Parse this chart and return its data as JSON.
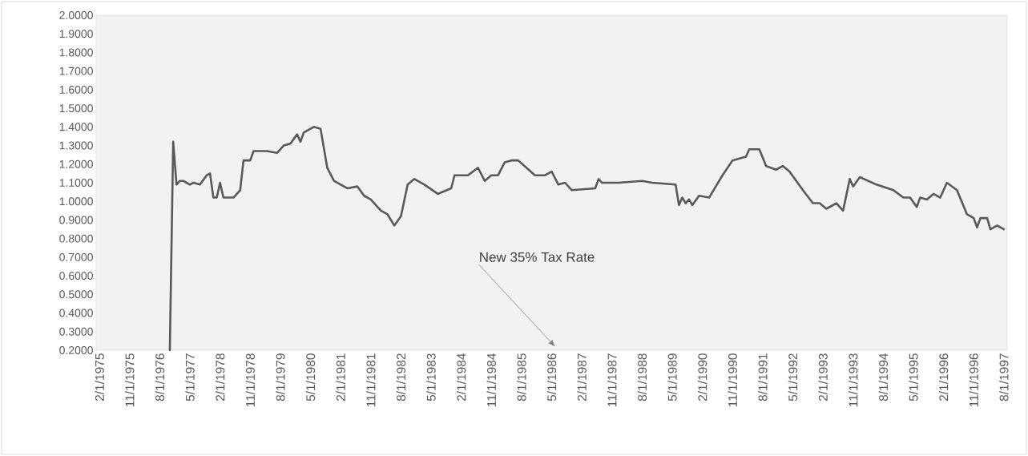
{
  "chart_data": {
    "type": "line",
    "x": [
      "1976-11",
      "1976-12",
      "1977-01",
      "1977-02",
      "1977-03",
      "1977-04",
      "1977-05",
      "1977-06",
      "1977-08",
      "1977-10",
      "1977-11",
      "1977-12",
      "1978-01",
      "1978-02",
      "1978-03",
      "1978-06",
      "1978-07",
      "1978-08",
      "1978-09",
      "1978-11",
      "1978-12",
      "1979-04",
      "1979-07",
      "1979-09",
      "1979-11",
      "1980-01",
      "1980-02",
      "1980-03",
      "1980-05",
      "1980-06",
      "1980-08",
      "1980-10",
      "1980-12",
      "1981-02",
      "1981-04",
      "1981-07",
      "1981-09",
      "1981-11",
      "1982-02",
      "1982-04",
      "1982-06",
      "1982-08",
      "1982-10",
      "1982-12",
      "1983-03",
      "1983-07",
      "1983-11",
      "1983-12",
      "1984-04",
      "1984-07",
      "1984-09",
      "1984-11",
      "1985-01",
      "1985-03",
      "1985-05",
      "1985-07",
      "1985-12",
      "1986-03",
      "1986-05",
      "1986-07",
      "1986-09",
      "1986-11",
      "1987-06",
      "1987-07",
      "1987-08",
      "1988-01",
      "1988-08",
      "1988-11",
      "1989-06",
      "1989-07",
      "1989-08",
      "1989-09",
      "1989-10",
      "1989-11",
      "1990-01",
      "1990-04",
      "1990-08",
      "1990-11",
      "1991-03",
      "1991-04",
      "1991-07",
      "1991-09",
      "1991-12",
      "1992-02",
      "1992-04",
      "1992-08",
      "1992-11",
      "1993-01",
      "1993-03",
      "1993-06",
      "1993-08",
      "1993-10",
      "1993-11",
      "1994-01",
      "1994-06",
      "1994-11",
      "1995-02",
      "1995-04",
      "1995-06",
      "1995-07",
      "1995-09",
      "1995-11",
      "1996-01",
      "1996-03",
      "1996-06",
      "1996-09",
      "1996-11",
      "1996-12",
      "1997-01",
      "1997-03",
      "1997-04",
      "1997-06",
      "1997-08"
    ],
    "series": [
      {
        "color": "#595959",
        "values": [
          0.2,
          1.32,
          1.09,
          1.11,
          1.11,
          1.1,
          1.09,
          1.1,
          1.09,
          1.14,
          1.15,
          1.02,
          1.02,
          1.1,
          1.02,
          1.02,
          1.04,
          1.06,
          1.22,
          1.22,
          1.27,
          1.27,
          1.26,
          1.3,
          1.31,
          1.36,
          1.32,
          1.37,
          1.39,
          1.4,
          1.39,
          1.18,
          1.11,
          1.09,
          1.07,
          1.08,
          1.03,
          1.01,
          0.95,
          0.93,
          0.87,
          0.92,
          1.09,
          1.12,
          1.09,
          1.04,
          1.07,
          1.14,
          1.14,
          1.18,
          1.11,
          1.14,
          1.14,
          1.21,
          1.22,
          1.22,
          1.14,
          1.14,
          1.16,
          1.09,
          1.1,
          1.06,
          1.07,
          1.12,
          1.1,
          1.1,
          1.11,
          1.1,
          1.09,
          0.98,
          1.02,
          0.99,
          1.01,
          0.98,
          1.03,
          1.02,
          1.14,
          1.22,
          1.24,
          1.28,
          1.28,
          1.19,
          1.17,
          1.19,
          1.16,
          1.06,
          0.99,
          0.99,
          0.96,
          0.99,
          0.95,
          1.12,
          1.08,
          1.13,
          1.09,
          1.06,
          1.02,
          1.02,
          0.97,
          1.02,
          1.01,
          1.04,
          1.02,
          1.1,
          1.06,
          0.93,
          0.91,
          0.86,
          0.91,
          0.91,
          0.85,
          0.87,
          0.85
        ]
      }
    ],
    "xlim": [
      "1975-01",
      "1997-09"
    ],
    "xticks": [
      {
        "value": "1975-02",
        "label": "2/1/1975"
      },
      {
        "value": "1975-11",
        "label": "11/1/1975"
      },
      {
        "value": "1976-08",
        "label": "8/1/1976"
      },
      {
        "value": "1977-05",
        "label": "5/1/1977"
      },
      {
        "value": "1978-02",
        "label": "2/1/1978"
      },
      {
        "value": "1978-11",
        "label": "11/1/1978"
      },
      {
        "value": "1979-08",
        "label": "8/1/1979"
      },
      {
        "value": "1980-05",
        "label": "5/1/1980"
      },
      {
        "value": "1981-02",
        "label": "2/1/1981"
      },
      {
        "value": "1981-11",
        "label": "11/1/1981"
      },
      {
        "value": "1982-08",
        "label": "8/1/1982"
      },
      {
        "value": "1983-05",
        "label": "5/1/1983"
      },
      {
        "value": "1984-02",
        "label": "2/1/1984"
      },
      {
        "value": "1984-11",
        "label": "11/1/1984"
      },
      {
        "value": "1985-08",
        "label": "8/1/1985"
      },
      {
        "value": "1986-05",
        "label": "5/1/1986"
      },
      {
        "value": "1987-02",
        "label": "2/1/1987"
      },
      {
        "value": "1987-11",
        "label": "11/1/1987"
      },
      {
        "value": "1988-08",
        "label": "8/1/1988"
      },
      {
        "value": "1989-05",
        "label": "5/1/1989"
      },
      {
        "value": "1990-02",
        "label": "2/1/1990"
      },
      {
        "value": "1990-11",
        "label": "11/1/1990"
      },
      {
        "value": "1991-08",
        "label": "8/1/1991"
      },
      {
        "value": "1992-05",
        "label": "5/1/1992"
      },
      {
        "value": "1993-02",
        "label": "2/1/1993"
      },
      {
        "value": "1993-11",
        "label": "11/1/1993"
      },
      {
        "value": "1994-08",
        "label": "8/1/1994"
      },
      {
        "value": "1995-05",
        "label": "5/1/1995"
      },
      {
        "value": "1996-02",
        "label": "2/1/1996"
      },
      {
        "value": "1996-11",
        "label": "11/1/1996"
      },
      {
        "value": "1997-08",
        "label": "8/1/1997"
      }
    ],
    "ylim": [
      0.2,
      2.0
    ],
    "yticks": [
      {
        "value": 0.2,
        "label": "0.2000"
      },
      {
        "value": 0.3,
        "label": "0.3000"
      },
      {
        "value": 0.4,
        "label": "0.4000"
      },
      {
        "value": 0.5,
        "label": "0.5000"
      },
      {
        "value": 0.6,
        "label": "0.6000"
      },
      {
        "value": 0.7,
        "label": "0.7000"
      },
      {
        "value": 0.8,
        "label": "0.8000"
      },
      {
        "value": 0.9,
        "label": "0.9000"
      },
      {
        "value": 1.0,
        "label": "1.0000"
      },
      {
        "value": 1.1,
        "label": "1.1000"
      },
      {
        "value": 1.2,
        "label": "1.2000"
      },
      {
        "value": 1.3,
        "label": "1.3000"
      },
      {
        "value": 1.4,
        "label": "1.4000"
      },
      {
        "value": 1.5,
        "label": "1.5000"
      },
      {
        "value": 1.6,
        "label": "1.6000"
      },
      {
        "value": 1.7,
        "label": "1.7000"
      },
      {
        "value": 1.8,
        "label": "1.8000"
      },
      {
        "value": 1.9,
        "label": "1.9000"
      },
      {
        "value": 2.0,
        "label": "2.0000"
      }
    ],
    "marker": "none",
    "line_style": "solid",
    "annotations": [
      "New 35% Tax Rate"
    ]
  }
}
